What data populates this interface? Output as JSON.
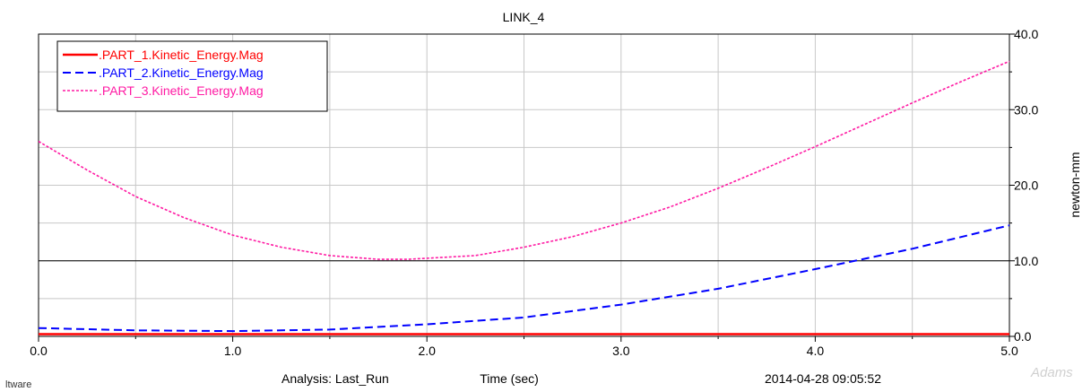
{
  "chart_data": {
    "type": "line",
    "title": "LINK_4",
    "xlabel": "Time (sec)",
    "ylabel": "newton-mm",
    "xlim": [
      0.0,
      5.0
    ],
    "ylim": [
      0.0,
      40.0
    ],
    "x_ticks": [
      "0.0",
      "1.0",
      "2.0",
      "3.0",
      "4.0",
      "5.0"
    ],
    "y_ticks": [
      "0.0",
      "10.0",
      "20.0",
      "30.0",
      "40.0"
    ],
    "y_axis_side": "right",
    "grid": true,
    "reference_line_y": 10.0,
    "legend_position": "top-left",
    "series": [
      {
        "name": ".PART_1.Kinetic_Energy.Mag",
        "color": "#ff0000",
        "style": "solid",
        "x": [
          0.0,
          1.0,
          2.0,
          3.0,
          4.0,
          5.0
        ],
        "values": [
          0.3,
          0.3,
          0.3,
          0.3,
          0.3,
          0.3
        ]
      },
      {
        "name": ".PART_2.Kinetic_Energy.Mag",
        "color": "#0000ff",
        "style": "dashed",
        "x": [
          0.0,
          0.5,
          1.0,
          1.5,
          2.0,
          2.5,
          3.0,
          3.5,
          4.0,
          4.5,
          5.0
        ],
        "values": [
          1.1,
          0.8,
          0.7,
          0.9,
          1.6,
          2.5,
          4.2,
          6.3,
          8.9,
          11.6,
          14.7
        ]
      },
      {
        "name": ".PART_3.Kinetic_Energy.Mag",
        "color": "#ff1aa3",
        "style": "dotted",
        "x": [
          0.0,
          0.25,
          0.5,
          0.75,
          1.0,
          1.25,
          1.5,
          1.75,
          1.9,
          2.25,
          2.5,
          2.75,
          3.0,
          3.25,
          3.5,
          3.75,
          4.0,
          4.25,
          4.5,
          4.75,
          5.0
        ],
        "values": [
          25.8,
          22.0,
          18.5,
          15.7,
          13.4,
          11.8,
          10.7,
          10.2,
          10.2,
          10.7,
          11.8,
          13.2,
          15.0,
          17.1,
          19.6,
          22.3,
          25.1,
          28.0,
          30.9,
          33.7,
          36.4
        ]
      }
    ]
  },
  "footer": {
    "left": "ltware",
    "analysis": "Analysis:  Last_Run",
    "timestamp": "2014-04-28 09:05:52",
    "brand": "Adams"
  },
  "colors": {
    "grid": "#c8c8c8",
    "axis": "#000000"
  }
}
